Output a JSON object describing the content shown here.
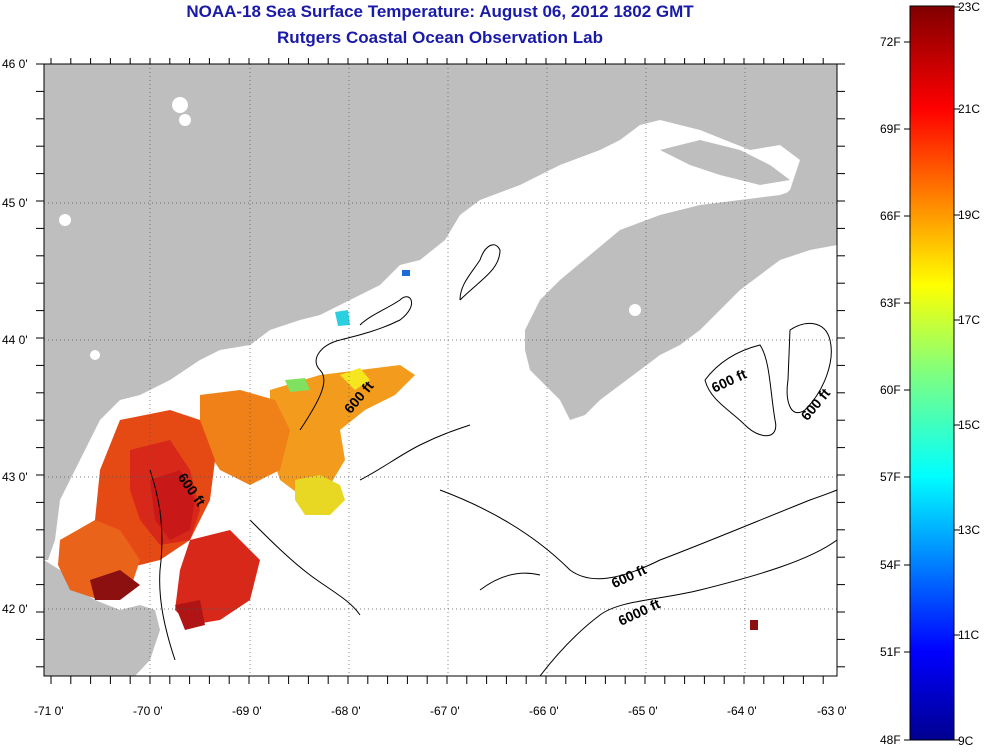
{
  "title": {
    "line1": "NOAA-18 Sea Surface Temperature:  August 06, 2012 1802 GMT",
    "line2": "Rutgers Coastal Ocean Observation Lab"
  },
  "map": {
    "lon_labels": [
      "-71 0'",
      "-70 0'",
      "-69 0'",
      "-68 0'",
      "-67 0'",
      "-66 0'",
      "-65 0'",
      "-64 0'",
      "-63 0'"
    ],
    "lat_labels": [
      "46 0'",
      "45 0'",
      "44 0'",
      "43 0'",
      "42 0'"
    ],
    "contour_labels": [
      "600 ft",
      "600 ft",
      "600 ft",
      "600 ft",
      "600 ft",
      "6000 ft"
    ],
    "colors": {
      "land": "#bebebe",
      "ocean": "#ffffff",
      "contour": "#000000",
      "grid": "#555555"
    }
  },
  "colorbar": {
    "fahrenheit_labels": [
      "72F",
      "69F",
      "66F",
      "63F",
      "60F",
      "57F",
      "54F",
      "51F",
      "48F"
    ],
    "celsius_labels": [
      "23C",
      "21C",
      "19C",
      "17C",
      "15C",
      "13C",
      "11C",
      "9C"
    ],
    "range_c": [
      9,
      23
    ],
    "colormap": "jet"
  }
}
